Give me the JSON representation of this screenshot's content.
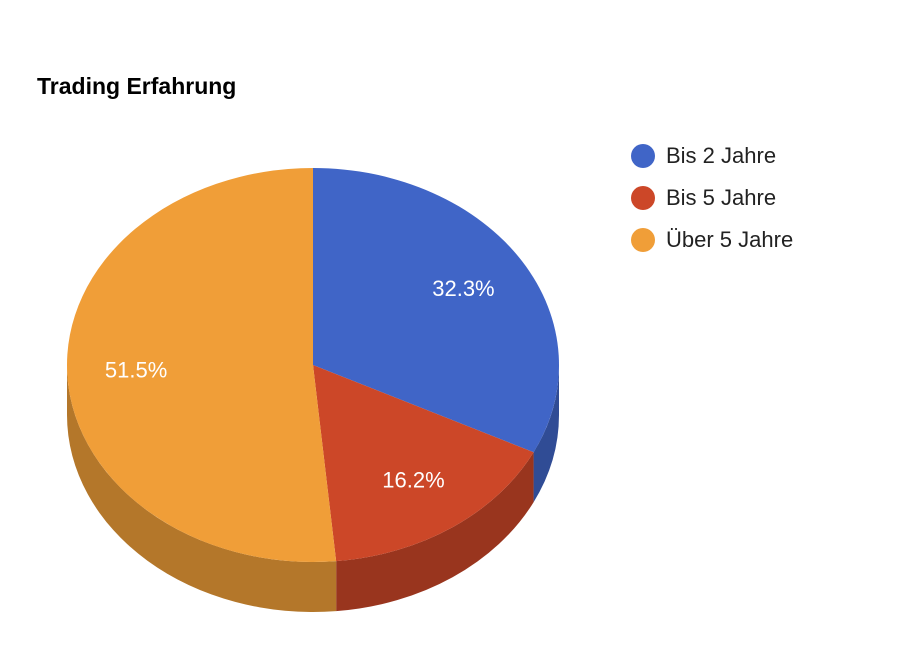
{
  "chart_data": {
    "type": "pie3d",
    "title": "Trading Erfahrung",
    "categories": [
      "Bis 2 Jahre",
      "Bis 5 Jahre",
      "Über 5 Jahre"
    ],
    "values": [
      32.3,
      16.2,
      51.5
    ],
    "value_labels": [
      "32.3%",
      "16.2%",
      "51.5%"
    ],
    "colors": [
      "#4065c7",
      "#cc4728",
      "#f09e38"
    ],
    "legend": "right"
  }
}
